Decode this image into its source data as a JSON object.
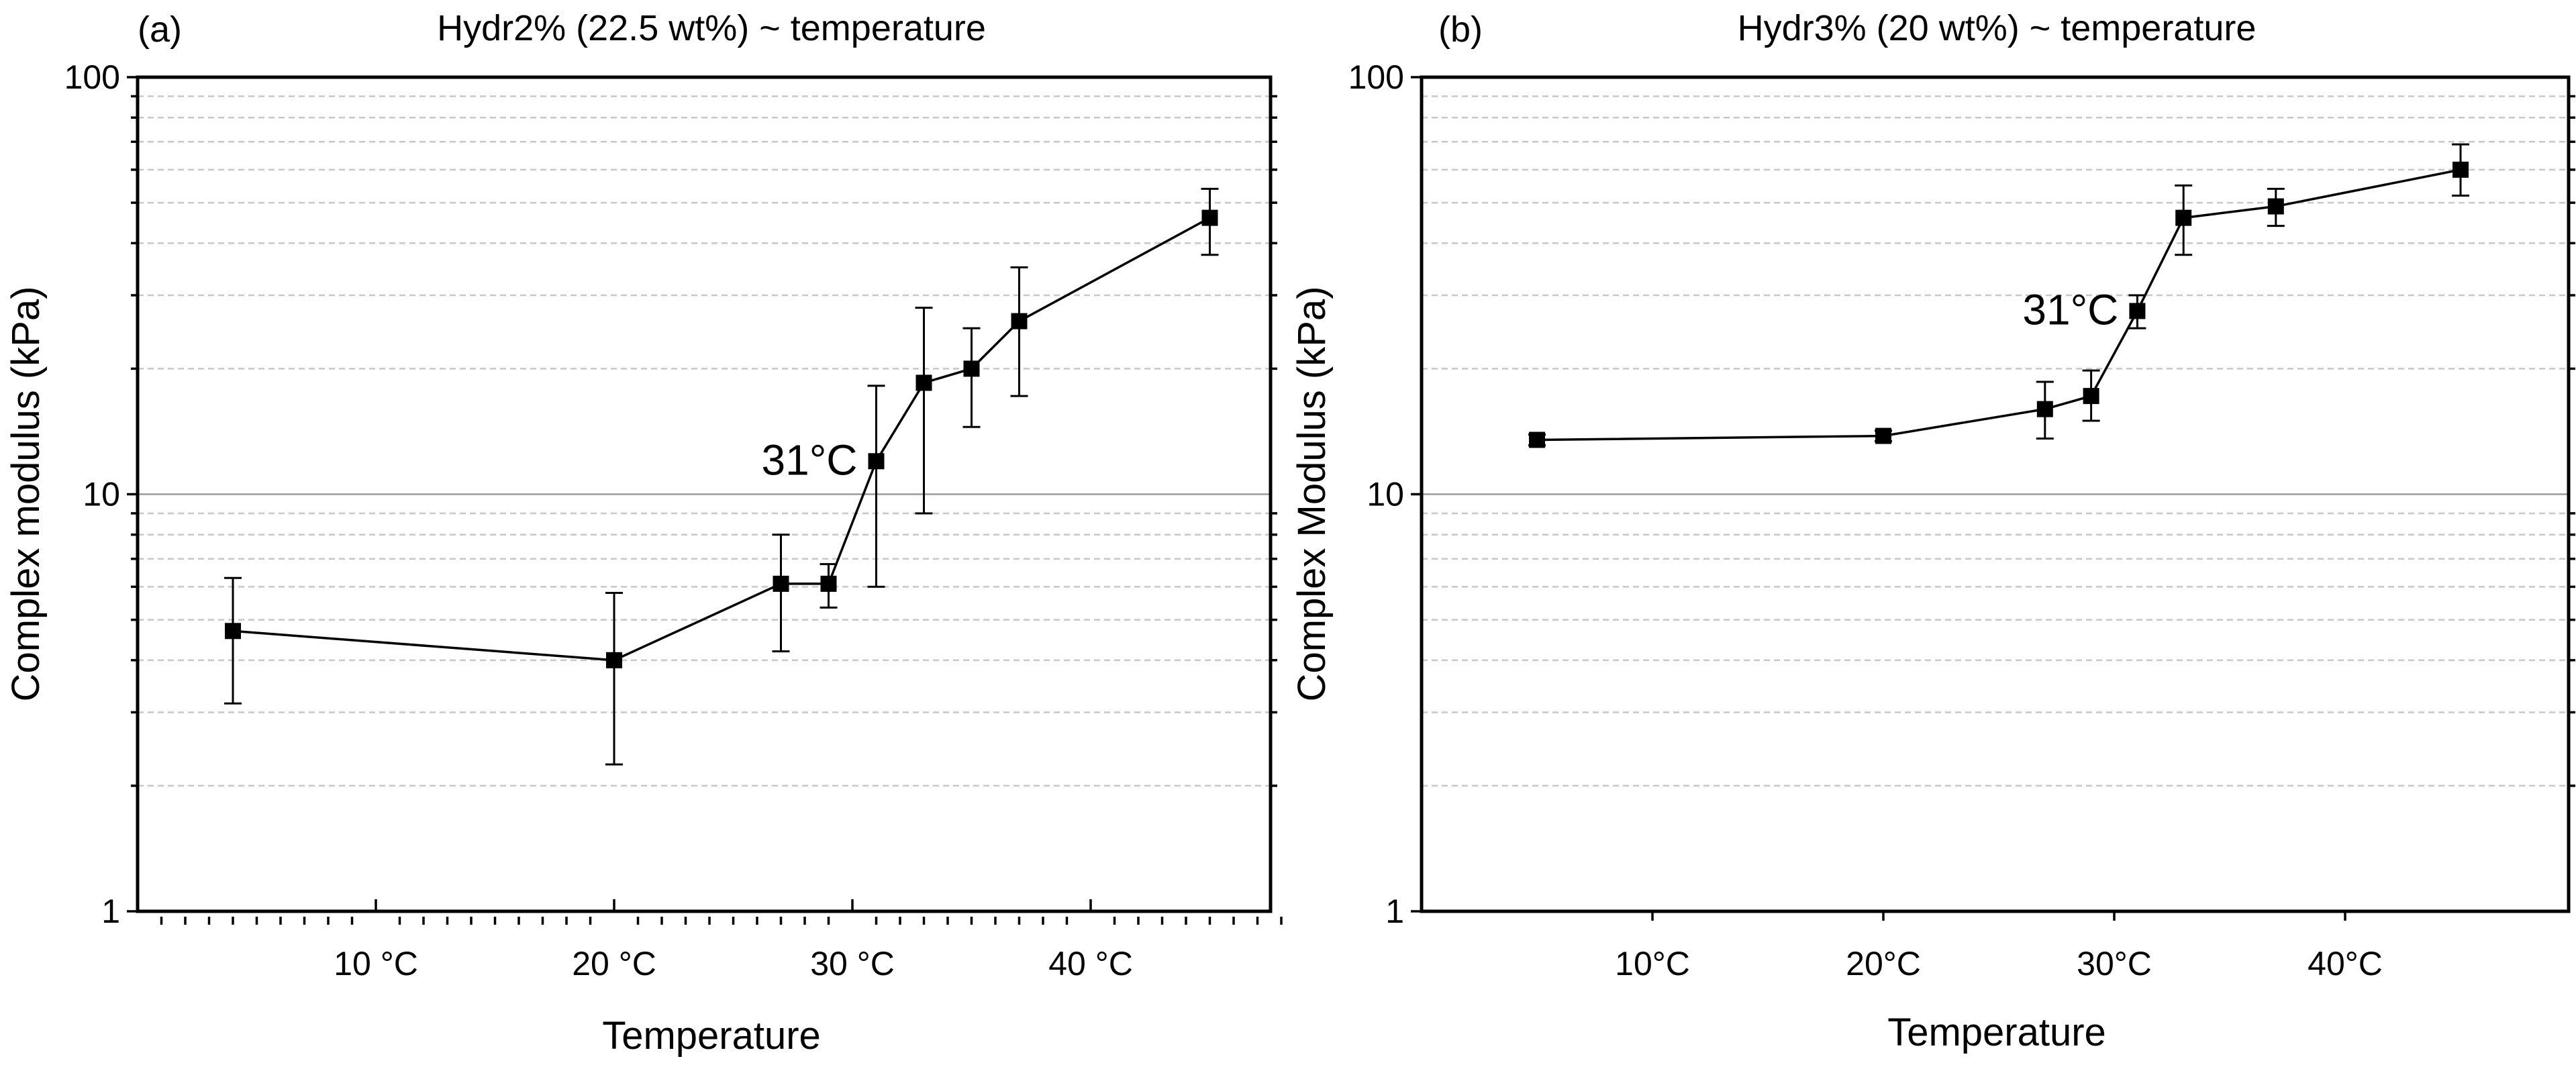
{
  "chart_data": [
    {
      "type": "scatter",
      "panel_label": "(a)",
      "title": "Hydr2% (22.5 wt%) ~ temperature",
      "xlabel": "Temperature",
      "ylabel": "Complex modulus (kPa)",
      "yscale": "log",
      "ylim": [
        1,
        100
      ],
      "xlim": [
        0,
        49
      ],
      "yticks": [
        1,
        10,
        100
      ],
      "ytick_labels": [
        "1",
        "10",
        "100"
      ],
      "xticks": [
        10,
        20,
        30,
        40
      ],
      "xtick_labels": [
        "10 °C",
        "20 °C",
        "30 °C",
        "40 °C"
      ],
      "x_minor_ticks": true,
      "grid": true,
      "annotation": {
        "text": "31°C",
        "x": 31,
        "y": 12
      },
      "series": [
        {
          "name": "Hydr2%",
          "x": [
            4,
            20,
            27,
            29,
            31,
            33,
            35,
            37,
            45
          ],
          "y": [
            4.7,
            4.0,
            6.1,
            6.1,
            12.0,
            18.5,
            20.0,
            26.0,
            46.0
          ],
          "err_low": [
            3.15,
            2.25,
            4.2,
            5.35,
            6.0,
            9.0,
            14.5,
            17.2,
            37.5
          ],
          "err_high": [
            6.3,
            5.8,
            8.0,
            6.8,
            18.2,
            28.0,
            25.0,
            35.0,
            54.0
          ]
        }
      ]
    },
    {
      "type": "scatter",
      "panel_label": "(b)",
      "title": "Hydr3% (20 wt%) ~ temperature",
      "xlabel": "Temperature",
      "ylabel": "Complex Modulus (kPa)",
      "yscale": "log",
      "ylim": [
        1,
        100
      ],
      "xlim": [
        0,
        49
      ],
      "yticks": [
        1,
        10,
        100
      ],
      "ytick_labels": [
        "1",
        "10",
        "100"
      ],
      "xticks": [
        10,
        20,
        30,
        40
      ],
      "xtick_labels": [
        "10°C",
        "20°C",
        "30°C",
        "40°C"
      ],
      "x_minor_ticks": false,
      "grid": true,
      "annotation": {
        "text": "31°C",
        "x": 31,
        "y": 27.5
      },
      "series": [
        {
          "name": "Hydr3%",
          "x": [
            5,
            20,
            27,
            29,
            31,
            33,
            37,
            45
          ],
          "y": [
            13.5,
            13.8,
            16.0,
            17.2,
            27.5,
            46.0,
            49.0,
            60.0
          ],
          "err_low": [
            13.1,
            13.4,
            13.6,
            15.0,
            25.0,
            37.5,
            44.0,
            52.0
          ],
          "err_high": [
            13.9,
            14.2,
            18.6,
            19.8,
            30.0,
            55.0,
            54.0,
            69.0
          ]
        }
      ]
    }
  ]
}
